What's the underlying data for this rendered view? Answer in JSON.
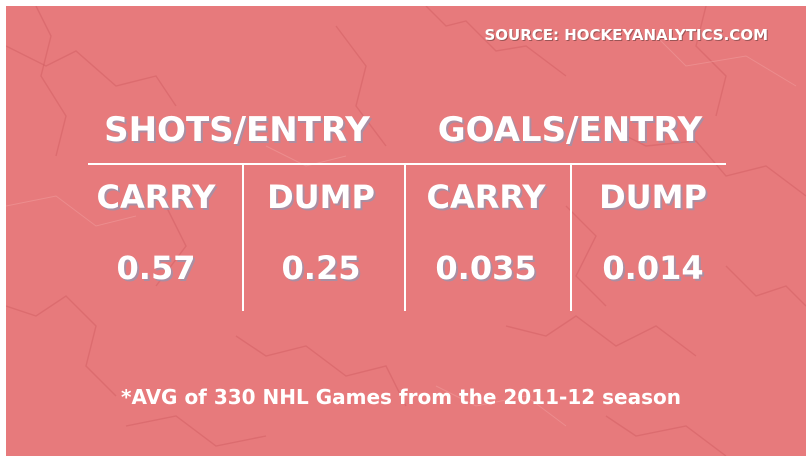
{
  "source": "SOURCE: HOCKEYANALYTICS.COM",
  "groups": [
    {
      "title": "SHOTS/ENTRY",
      "columns": [
        {
          "label": "CARRY",
          "value": "0.57"
        },
        {
          "label": "DUMP",
          "value": "0.25"
        }
      ]
    },
    {
      "title": "GOALS/ENTRY",
      "columns": [
        {
          "label": "CARRY",
          "value": "0.035"
        },
        {
          "label": "DUMP",
          "value": "0.014"
        }
      ]
    }
  ],
  "footnote": "*AVG of 330 NHL Games from the 2011-12 season",
  "colors": {
    "background": "#e77a7c",
    "text": "#ffffff",
    "text_shadow": "#9696af"
  }
}
